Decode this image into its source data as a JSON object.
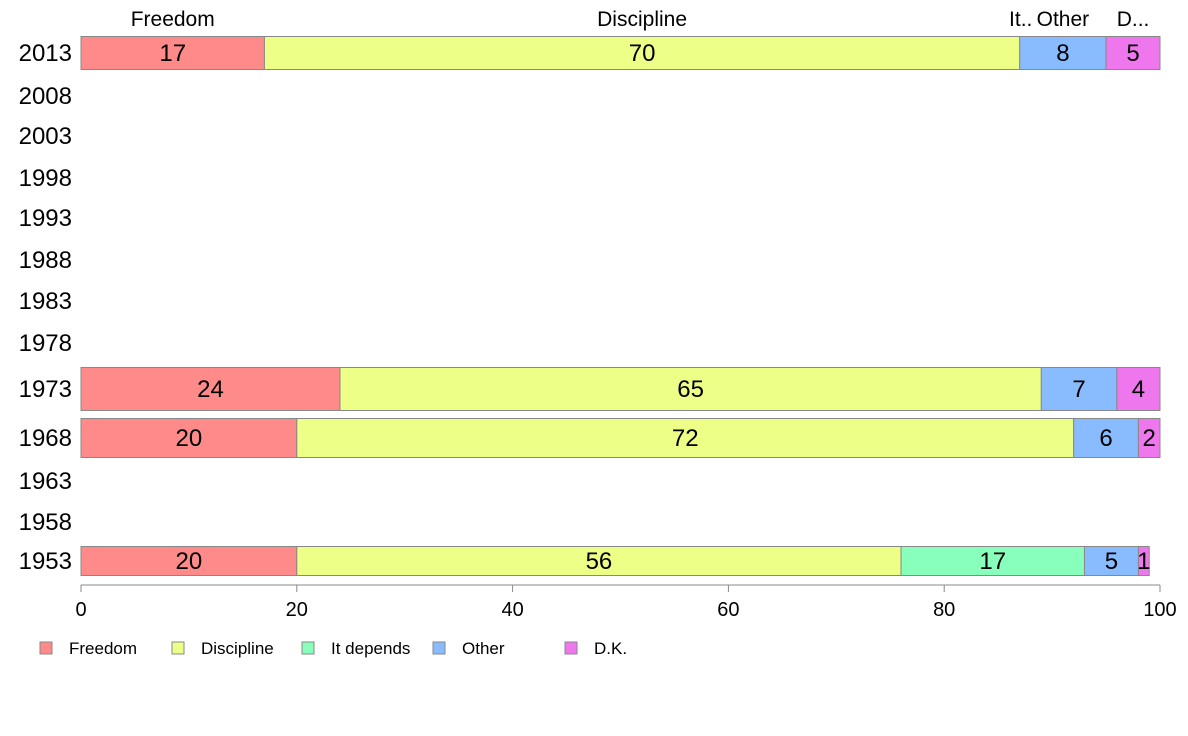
{
  "chart_data": {
    "type": "bar",
    "orientation": "horizontal",
    "stacked": true,
    "categories": [
      "2013",
      "2008",
      "2003",
      "1998",
      "1993",
      "1988",
      "1983",
      "1978",
      "1973",
      "1968",
      "1963",
      "1958",
      "1953"
    ],
    "series": [
      {
        "name": "Freedom",
        "color": "#FF8A8A",
        "values": [
          17,
          null,
          null,
          null,
          null,
          null,
          null,
          null,
          24,
          20,
          null,
          null,
          20
        ]
      },
      {
        "name": "Discipline",
        "color": "#EEFF88",
        "values": [
          70,
          null,
          null,
          null,
          null,
          null,
          null,
          null,
          65,
          72,
          null,
          null,
          56
        ]
      },
      {
        "name": "It depends",
        "color": "#88FFBB",
        "values": [
          null,
          null,
          null,
          null,
          null,
          null,
          null,
          null,
          null,
          null,
          null,
          null,
          17
        ]
      },
      {
        "name": "Other",
        "color": "#88BBFF",
        "values": [
          8,
          null,
          null,
          null,
          null,
          null,
          null,
          null,
          7,
          6,
          null,
          null,
          5
        ]
      },
      {
        "name": "D.K.",
        "color": "#EE77EE",
        "values": [
          5,
          null,
          null,
          null,
          null,
          null,
          null,
          null,
          4,
          2,
          null,
          null,
          1
        ]
      }
    ],
    "top_labels": [
      "Freedom",
      "Discipline",
      "It..",
      "Other",
      "D..."
    ],
    "xlim": [
      0,
      100
    ],
    "xticks": [
      0,
      20,
      40,
      60,
      80,
      100
    ],
    "grid": false,
    "legend_position": "bottom-left"
  }
}
